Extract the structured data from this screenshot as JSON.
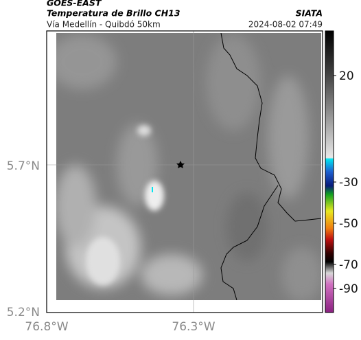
{
  "header": {
    "satellite": "GOES-EAST",
    "product": "Temperatura de Brillo CH13",
    "source": "SIATA",
    "location": "Vía Medellín - Quibdó 50km",
    "datetime": "2024-08-02 07:49"
  },
  "map": {
    "lat_labels": [
      "5.7°N",
      "5.2°N"
    ],
    "lon_labels": [
      "76.8°W",
      "76.3°W"
    ]
  },
  "colorbar": {
    "ticks": [
      20,
      -30,
      -50,
      -70,
      -90
    ]
  }
}
